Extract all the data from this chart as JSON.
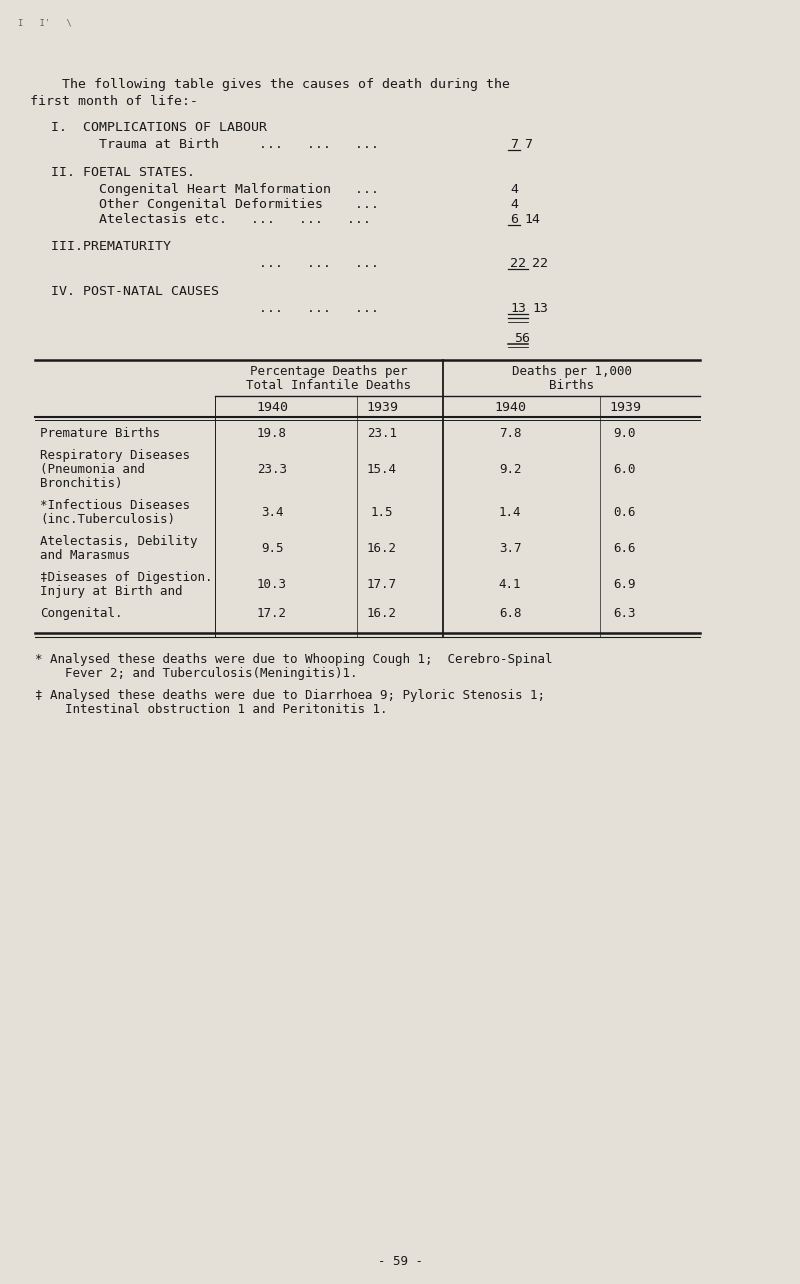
{
  "bg_color": "#e4e0d8",
  "text_color": "#1a1a1a",
  "page_number": "- 59 -",
  "intro_line1": "    The following table gives the causes of death during the",
  "intro_line2": "first month of life:-",
  "sec1_title": "  I.  COMPLICATIONS OF LABOUR",
  "sec1_sub": "        Trauma at Birth     ...   ...   ...",
  "sec1_val": "7",
  "sec1_total": "7",
  "sec2_title": "  II. FOETAL STATES.",
  "sec2_items": [
    [
      "        Congenital Heart Malformation   ...",
      "4"
    ],
    [
      "        Other Congenital Deformities    ...",
      "4"
    ],
    [
      "        Atelectasis etc.   ...   ...   ...  ",
      "6"
    ]
  ],
  "sec2_total": "14",
  "sec3_title": "  III.PREMATURITY",
  "sec3_sub": "                            ...   ...   ...",
  "sec3_val": "22",
  "sec3_total": "22",
  "sec4_title": "  IV. POST-NATAL CAUSES",
  "sec4_sub": "                            ...   ...   ...",
  "sec4_val": "13",
  "sec4_total": "13",
  "grand_total": "56",
  "tbl_hdr_left": [
    "Percentage Deaths per",
    "Total Infantile Deaths"
  ],
  "tbl_hdr_right": [
    "Deaths per 1,000",
    "Births"
  ],
  "tbl_years": [
    "1940",
    "1939",
    "1940",
    "1939"
  ],
  "tbl_rows": [
    [
      "Premature Births",
      "",
      "",
      "19.8",
      "23.1",
      "7.8",
      "9.0"
    ],
    [
      "Respiratory Diseases",
      "(Pneumonia and",
      "Bronchitis)",
      "23.3",
      "15.4",
      "9.2",
      "6.0"
    ],
    [
      "*Infectious Diseases",
      "(inc.Tuberculosis)",
      "",
      "3.4",
      "1.5",
      "1.4",
      "0.6"
    ],
    [
      "Atelectasis, Debility",
      "and Marasmus",
      "",
      "9.5",
      "16.2",
      "3.7",
      "6.6"
    ],
    [
      "‡Diseases of Digestion.",
      "Injury at Birth and",
      "",
      "10.3",
      "17.7",
      "4.1",
      "6.9"
    ],
    [
      "Congenital.",
      "",
      "",
      "17.2",
      "16.2",
      "6.8",
      "6.3"
    ]
  ],
  "fn1a": "* Analysed these deaths were due to Whooping Cough 1;  Cerebro-Spinal",
  "fn1b": "    Fever 2; and Tuberculosis(Meningitis)1.",
  "fn2a": "‡ Analysed these deaths were due to Diarrhoea 9; Pyloric Stenosis 1;",
  "fn2b": "    Intestinal obstruction 1 and Peritonitis 1."
}
